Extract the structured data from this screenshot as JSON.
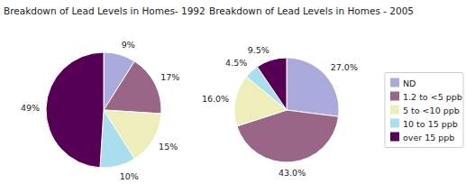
{
  "chart_data": [
    {
      "type": "pie",
      "title": "Breakdown of Lead Levels in Homes- 1992",
      "categories": [
        "ND",
        "1.2 to <5 ppb",
        "5 to <10 ppb",
        "10 to 15 ppb",
        "over 15 ppb"
      ],
      "values": [
        9,
        17,
        15,
        10,
        49
      ],
      "value_labels": [
        "9%",
        "17%",
        "15%",
        "10%",
        "49%"
      ],
      "colors": [
        "#aaaadd",
        "#996688",
        "#eeeebb",
        "#aaddee",
        "#550055"
      ],
      "data_labels": true
    },
    {
      "type": "pie",
      "title": "Breakdown of Lead Levels in Homes - 2005",
      "categories": [
        "ND",
        "1.2 to <5 ppb",
        "5 to <10 ppb",
        "10 to 15 ppb",
        "over 15 ppb"
      ],
      "values": [
        27.0,
        43.0,
        16.0,
        4.5,
        9.5
      ],
      "value_labels": [
        "27.0%",
        "43.0%",
        "16.0%",
        "4.5%",
        "9.5%"
      ],
      "colors": [
        "#aaaadd",
        "#996688",
        "#eeeebb",
        "#aaddee",
        "#550055"
      ],
      "data_labels": true,
      "legend": "right"
    }
  ]
}
